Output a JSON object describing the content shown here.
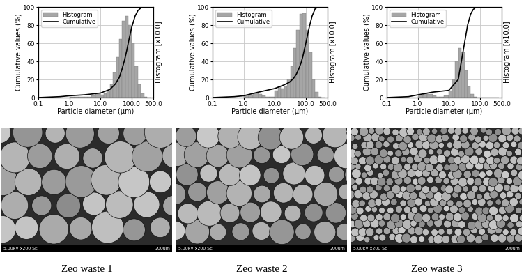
{
  "chart_data": [
    {
      "type": "histogram",
      "xlabel": "Particle diameter (μm)",
      "ylabel": "Cumulative values (%)",
      "y2label": "Histogram [x10.0]",
      "log": "x",
      "grid": true,
      "legend": "upper left",
      "xlim": [
        0.1,
        500
      ],
      "xticks": [
        0.1,
        {
          "value": 1,
          "label": "1.0"
        },
        {
          "value": 10,
          "label": "10.0"
        },
        {
          "value": 100,
          "label": "100.0"
        },
        {
          "value": 500,
          "label": "500.0"
        }
      ],
      "ylim": [
        0,
        100
      ],
      "yticks": [
        0,
        20,
        40,
        60,
        80,
        100
      ],
      "series": [
        {
          "name": "Histogram",
          "type": "histogram",
          "color": "#a6a6a6",
          "bins": [
            1,
            1.5,
            2,
            3,
            4,
            5,
            7,
            10,
            13,
            16,
            20,
            25,
            32,
            40,
            50,
            63,
            80,
            100,
            126,
            158,
            200,
            250,
            316,
            400
          ],
          "values": [
            1,
            1,
            1,
            1,
            1,
            2,
            4,
            3,
            5,
            8,
            15,
            28,
            45,
            65,
            85,
            90,
            80,
            60,
            35,
            15,
            5,
            1,
            0
          ]
        },
        {
          "name": "Cumulative",
          "type": "line",
          "color": "#000000",
          "x": [
            0.1,
            0.5,
            1,
            3,
            10,
            20,
            30,
            40,
            50,
            60,
            70,
            80,
            100,
            130,
            160,
            200,
            250,
            500
          ],
          "values": [
            0,
            1,
            2,
            3,
            5,
            9,
            15,
            22,
            32,
            42,
            52,
            62,
            77,
            90,
            96,
            99,
            100,
            100
          ]
        }
      ],
      "annotations": [
        "5.00kV x200 SE",
        "200um"
      ],
      "caption": "Zeo waste 1"
    },
    {
      "type": "histogram",
      "xlabel": "Particle diameter (μm)",
      "ylabel": "Cumulative values (%)",
      "y2label": "Histogram [x10.0]",
      "log": "x",
      "grid": true,
      "legend": "upper left",
      "xlim": [
        0.1,
        500
      ],
      "xticks": [
        0.1,
        {
          "value": 1,
          "label": "1.0"
        },
        {
          "value": 10,
          "label": "10.0"
        },
        {
          "value": 100,
          "label": "100.0"
        },
        {
          "value": 500,
          "label": "500.0"
        }
      ],
      "ylim": [
        0,
        100
      ],
      "yticks": [
        0,
        20,
        40,
        60,
        80,
        100
      ],
      "series": [
        {
          "name": "Histogram",
          "type": "histogram",
          "color": "#a6a6a6",
          "bins": [
            1,
            1.5,
            2,
            3,
            4,
            5,
            7,
            10,
            13,
            16,
            20,
            25,
            32,
            40,
            50,
            63,
            80,
            100,
            126,
            158,
            200,
            250,
            316,
            400
          ],
          "values": [
            2,
            3,
            5,
            4,
            2,
            1,
            1,
            8,
            12,
            10,
            12,
            20,
            35,
            55,
            75,
            92,
            93,
            75,
            50,
            20,
            6,
            1,
            0
          ]
        },
        {
          "name": "Cumulative",
          "type": "line",
          "color": "#000000",
          "x": [
            0.1,
            0.5,
            1,
            3,
            10,
            20,
            30,
            40,
            50,
            60,
            70,
            80,
            100,
            130,
            160,
            200,
            250,
            500
          ],
          "values": [
            0,
            1,
            2,
            6,
            10,
            14,
            17,
            21,
            26,
            32,
            38,
            45,
            60,
            78,
            90,
            98,
            100,
            100
          ]
        }
      ],
      "annotations": [
        "5.00kV x200 SE",
        "200um"
      ],
      "caption": "Zeo waste 2"
    },
    {
      "type": "histogram",
      "xlabel": "Particle diameter (μm)",
      "ylabel": "Cumulative values (%)",
      "y2label": "Histogram [x10.0]",
      "log": "x",
      "grid": true,
      "legend": "upper left",
      "xlim": [
        0.1,
        500
      ],
      "xticks": [
        0.1,
        {
          "value": 1,
          "label": "1.0"
        },
        {
          "value": 10,
          "label": "10.0"
        },
        {
          "value": 100,
          "label": "100.0"
        },
        {
          "value": 500,
          "label": "500.0"
        }
      ],
      "ylim": [
        0,
        100
      ],
      "yticks": [
        0,
        20,
        40,
        60,
        80,
        100
      ],
      "series": [
        {
          "name": "Histogram",
          "type": "histogram",
          "color": "#a6a6a6",
          "bins": [
            1,
            1.5,
            2,
            3,
            4,
            5,
            7,
            10,
            13,
            16,
            20,
            25,
            32,
            40,
            50,
            63,
            80,
            100,
            126,
            158,
            200,
            250,
            316,
            400
          ],
          "values": [
            3,
            5,
            4,
            2,
            1,
            1,
            2,
            8,
            20,
            40,
            55,
            50,
            30,
            12,
            4,
            1,
            0,
            0,
            0,
            0,
            0,
            0,
            0
          ]
        },
        {
          "name": "Cumulative",
          "type": "line",
          "color": "#000000",
          "x": [
            0.1,
            0.5,
            1,
            3,
            10,
            20,
            30,
            40,
            50,
            60,
            70,
            80,
            100,
            130,
            160,
            200,
            250,
            500
          ],
          "values": [
            0,
            1,
            3,
            6,
            8,
            20,
            55,
            80,
            92,
            97,
            99,
            100,
            100,
            100,
            100,
            100,
            100,
            100
          ]
        }
      ],
      "annotations": [
        "5.00kV x200 SE",
        "200um"
      ],
      "caption": "Zeo waste 3"
    }
  ]
}
